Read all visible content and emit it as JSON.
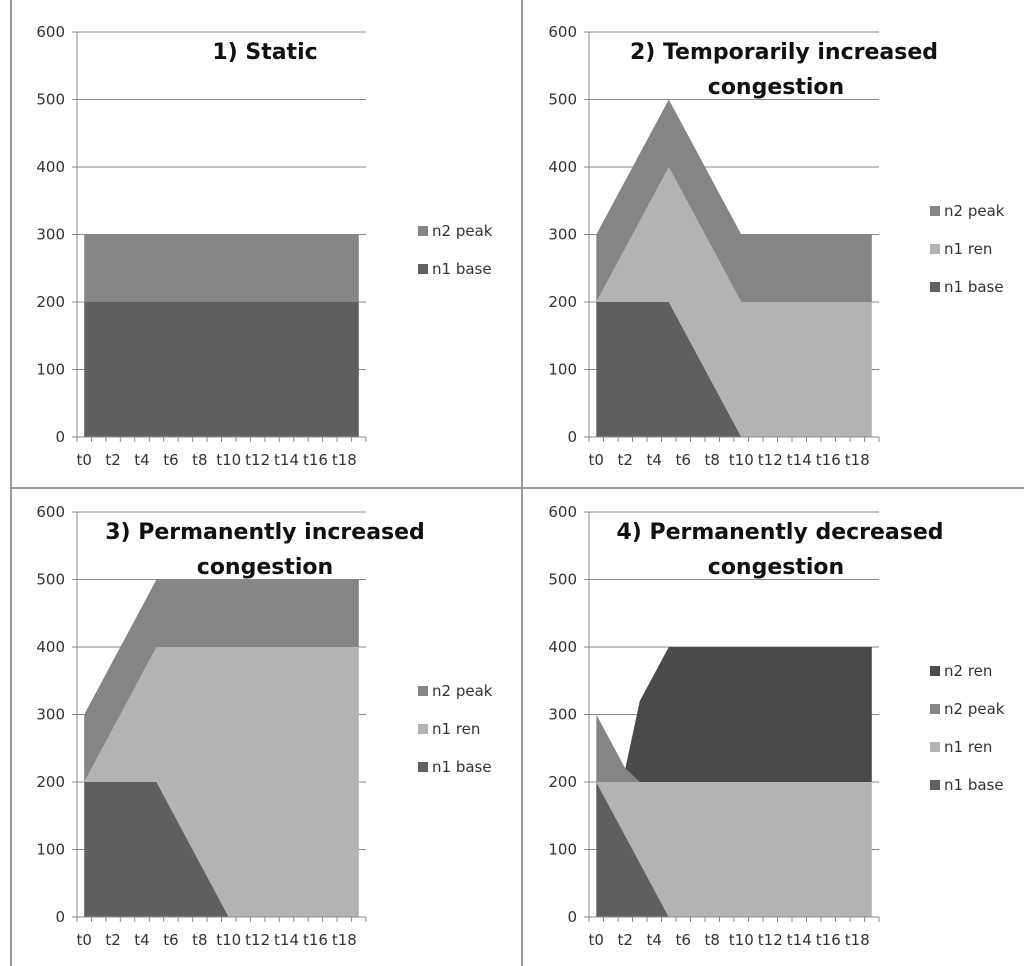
{
  "chart_data": [
    {
      "type": "area",
      "stacked": true,
      "title": "1) Static",
      "x": [
        "t0",
        "t1",
        "t2",
        "t3",
        "t4",
        "t5",
        "t6",
        "t7",
        "t8",
        "t9",
        "t10",
        "t11",
        "t12",
        "t13",
        "t14",
        "t15",
        "t16",
        "t17",
        "t18",
        "t19"
      ],
      "x_tick_labels": [
        "t0",
        "t2",
        "t4",
        "t6",
        "t8",
        "t10",
        "t12",
        "t14",
        "t16",
        "t18"
      ],
      "y_tick_labels": [
        "0",
        "100",
        "200",
        "300",
        "400",
        "500",
        "600"
      ],
      "ylim": [
        0,
        600
      ],
      "grid": true,
      "legend_position": "right",
      "series": [
        {
          "name": "n1 base",
          "color": "#5f5f5f",
          "values": [
            200,
            200,
            200,
            200,
            200,
            200,
            200,
            200,
            200,
            200,
            200,
            200,
            200,
            200,
            200,
            200,
            200,
            200,
            200,
            200
          ]
        },
        {
          "name": "n2 peak",
          "color": "#858585",
          "values": [
            100,
            100,
            100,
            100,
            100,
            100,
            100,
            100,
            100,
            100,
            100,
            100,
            100,
            100,
            100,
            100,
            100,
            100,
            100,
            100
          ]
        }
      ]
    },
    {
      "type": "area",
      "stacked": true,
      "title": "2) Temporarily increased congestion",
      "x": [
        "t0",
        "t1",
        "t2",
        "t3",
        "t4",
        "t5",
        "t6",
        "t7",
        "t8",
        "t9",
        "t10",
        "t11",
        "t12",
        "t13",
        "t14",
        "t15",
        "t16",
        "t17",
        "t18",
        "t19"
      ],
      "x_tick_labels": [
        "t0",
        "t2",
        "t4",
        "t6",
        "t8",
        "t10",
        "t12",
        "t14",
        "t16",
        "t18"
      ],
      "y_tick_labels": [
        "0",
        "100",
        "200",
        "300",
        "400",
        "500",
        "600"
      ],
      "ylim": [
        0,
        600
      ],
      "grid": true,
      "legend_position": "right",
      "series": [
        {
          "name": "n1 base",
          "color": "#5f5f5f",
          "values": [
            200,
            200,
            200,
            200,
            200,
            200,
            160,
            120,
            80,
            40,
            0,
            0,
            0,
            0,
            0,
            0,
            0,
            0,
            0,
            0
          ]
        },
        {
          "name": "n1 ren",
          "color": "#b3b3b3",
          "values": [
            0,
            40,
            80,
            120,
            160,
            200,
            200,
            200,
            200,
            200,
            200,
            200,
            200,
            200,
            200,
            200,
            200,
            200,
            200,
            200
          ]
        },
        {
          "name": "n2 peak",
          "color": "#858585",
          "values": [
            100,
            100,
            100,
            100,
            100,
            100,
            100,
            100,
            100,
            100,
            100,
            100,
            100,
            100,
            100,
            100,
            100,
            100,
            100,
            100
          ]
        }
      ]
    },
    {
      "type": "area",
      "stacked": true,
      "title": "3) Permanently increased congestion",
      "x": [
        "t0",
        "t1",
        "t2",
        "t3",
        "t4",
        "t5",
        "t6",
        "t7",
        "t8",
        "t9",
        "t10",
        "t11",
        "t12",
        "t13",
        "t14",
        "t15",
        "t16",
        "t17",
        "t18",
        "t19"
      ],
      "x_tick_labels": [
        "t0",
        "t2",
        "t4",
        "t6",
        "t8",
        "t10",
        "t12",
        "t14",
        "t16",
        "t18"
      ],
      "y_tick_labels": [
        "0",
        "100",
        "200",
        "300",
        "400",
        "500",
        "600"
      ],
      "ylim": [
        0,
        600
      ],
      "grid": true,
      "legend_position": "right",
      "series": [
        {
          "name": "n1 base",
          "color": "#5f5f5f",
          "values": [
            200,
            200,
            200,
            200,
            200,
            200,
            160,
            120,
            80,
            40,
            0,
            0,
            0,
            0,
            0,
            0,
            0,
            0,
            0,
            0
          ]
        },
        {
          "name": "n1 ren",
          "color": "#b3b3b3",
          "values": [
            0,
            40,
            80,
            120,
            160,
            200,
            240,
            280,
            320,
            360,
            400,
            400,
            400,
            400,
            400,
            400,
            400,
            400,
            400,
            400
          ]
        },
        {
          "name": "n2 peak",
          "color": "#858585",
          "values": [
            100,
            100,
            100,
            100,
            100,
            100,
            100,
            100,
            100,
            100,
            100,
            100,
            100,
            100,
            100,
            100,
            100,
            100,
            100,
            100
          ]
        }
      ]
    },
    {
      "type": "area",
      "stacked": true,
      "title": "4) Permanently decreased congestion",
      "x": [
        "t0",
        "t1",
        "t2",
        "t3",
        "t4",
        "t5",
        "t6",
        "t7",
        "t8",
        "t9",
        "t10",
        "t11",
        "t12",
        "t13",
        "t14",
        "t15",
        "t16",
        "t17",
        "t18",
        "t19"
      ],
      "x_tick_labels": [
        "t0",
        "t2",
        "t4",
        "t6",
        "t8",
        "t10",
        "t12",
        "t14",
        "t16",
        "t18"
      ],
      "y_tick_labels": [
        "0",
        "100",
        "200",
        "300",
        "400",
        "500",
        "600"
      ],
      "ylim": [
        0,
        600
      ],
      "grid": true,
      "legend_position": "right",
      "series": [
        {
          "name": "n1 base",
          "color": "#5f5f5f",
          "values": [
            200,
            160,
            120,
            80,
            40,
            0,
            0,
            0,
            0,
            0,
            0,
            0,
            0,
            0,
            0,
            0,
            0,
            0,
            0,
            0
          ]
        },
        {
          "name": "n1 ren",
          "color": "#b3b3b3",
          "values": [
            0,
            40,
            80,
            120,
            160,
            200,
            200,
            200,
            200,
            200,
            200,
            200,
            200,
            200,
            200,
            200,
            200,
            200,
            200,
            200
          ]
        },
        {
          "name": "n2 peak",
          "color": "#858585",
          "values": [
            100,
            60,
            20,
            0,
            0,
            0,
            0,
            0,
            0,
            0,
            0,
            0,
            0,
            0,
            0,
            0,
            0,
            0,
            0,
            0
          ]
        },
        {
          "name": "n2 ren",
          "color": "#4a4a4a",
          "values": [
            0,
            0,
            0,
            120,
            160,
            200,
            200,
            200,
            200,
            200,
            200,
            200,
            200,
            200,
            200,
            200,
            200,
            200,
            200,
            200
          ]
        }
      ]
    }
  ]
}
